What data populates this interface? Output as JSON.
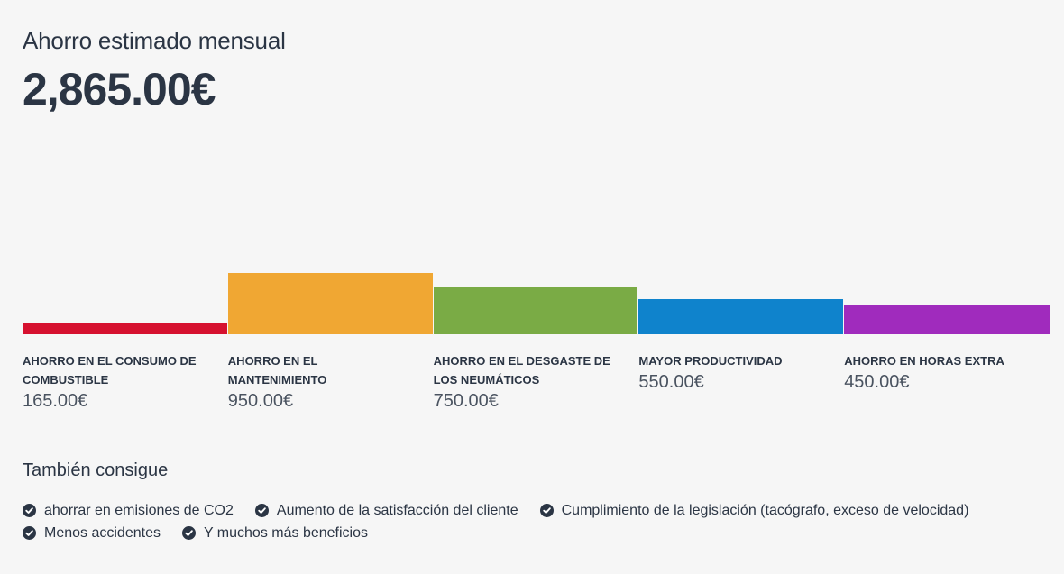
{
  "header": {
    "title": "Ahorro estimado mensual",
    "total": "2,865.00€"
  },
  "chart_data": {
    "type": "bar",
    "categories": [
      "AHORRO EN EL CONSUMO DE COMBUSTIBLE",
      "AHORRO EN EL MANTENIMIENTO",
      "AHORRO EN EL DESGASTE DE LOS NEUMÁTICOS",
      "MAYOR PRODUCTIVIDAD",
      "AHORRO EN HORAS EXTRA"
    ],
    "values": [
      165,
      950,
      750,
      550,
      450
    ],
    "value_labels": [
      "165.00€",
      "950.00€",
      "750.00€",
      "550.00€",
      "450.00€"
    ],
    "colors": [
      "#d6112f",
      "#f0a733",
      "#7aab45",
      "#0f83cc",
      "#a02bbd"
    ],
    "ylim": [
      0,
      1700
    ],
    "grid": false,
    "legend": "none"
  },
  "also": {
    "title": "También consigue",
    "items": [
      "ahorrar en emisiones de CO2",
      "Aumento de la satisfacción del cliente",
      "Cumplimiento de la legislación (tacógrafo, exceso de velocidad)",
      "Menos accidentes",
      "Y muchos más beneficios"
    ]
  }
}
